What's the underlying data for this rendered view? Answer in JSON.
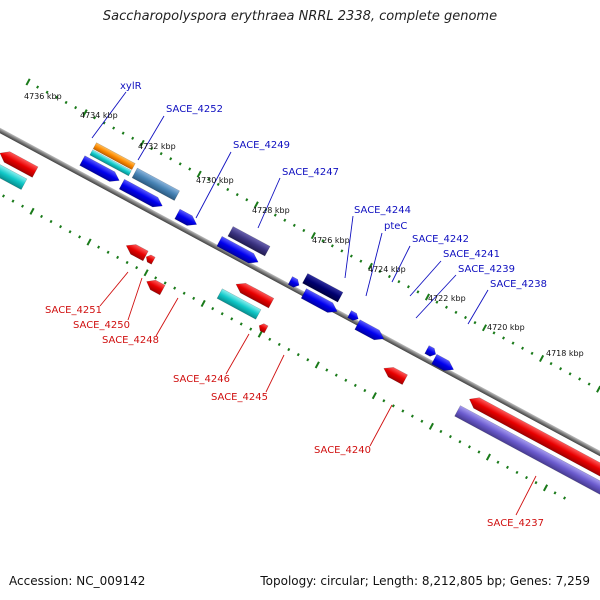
{
  "title": "Saccharopolyspora erythraea NRRL 2338, complete genome",
  "footer": {
    "accession": "Accession: NC_009142",
    "summary": "Topology: circular; Length: 8,212,805 bp; Genes: 7,259"
  },
  "colors": {
    "backbone": "#808080",
    "tick": "#1a7a1a",
    "forward_label": "#1010c0",
    "reverse_label": "#d01010",
    "gene_red": "#e00000",
    "gene_blue": "#0000ee",
    "gene_cyan": "#10c8c8",
    "gene_orange": "#ff8c00",
    "gene_steel": "#4682b4",
    "gene_darkslate": "#3a3280",
    "gene_navy": "#000070",
    "gene_purple": "#6a5acd"
  },
  "scale": {
    "ticks": [
      "4736 kbp",
      "4734 kbp",
      "4732 kbp",
      "4730 kbp",
      "4728 kbp",
      "4726 kbp",
      "4724 kbp",
      "4722 kbp",
      "4720 kbp",
      "4718 kbp"
    ]
  },
  "forward_genes": [
    {
      "name": "xylR",
      "color": "orange"
    },
    {
      "name": "SACE_4252",
      "color": "steel"
    },
    {
      "name": "SACE_4249",
      "color": "blue"
    },
    {
      "name": "SACE_4247",
      "color": "darkslate"
    },
    {
      "name": "SACE_4244",
      "color": "navy"
    },
    {
      "name": "pteC",
      "color": "blue"
    },
    {
      "name": "SACE_4242",
      "color": "blue"
    },
    {
      "name": "SACE_4241",
      "color": "blue"
    },
    {
      "name": "SACE_4239",
      "color": "blue"
    },
    {
      "name": "SACE_4238",
      "color": "blue"
    }
  ],
  "reverse_genes": [
    {
      "name": "SACE_4251",
      "color": "red"
    },
    {
      "name": "SACE_4250",
      "color": "red"
    },
    {
      "name": "SACE_4248",
      "color": "red"
    },
    {
      "name": "SACE_4246",
      "color": "cyan"
    },
    {
      "name": "SACE_4245",
      "color": "red"
    },
    {
      "name": "SACE_4240",
      "color": "red"
    },
    {
      "name": "SACE_4237",
      "color": "purple"
    }
  ]
}
